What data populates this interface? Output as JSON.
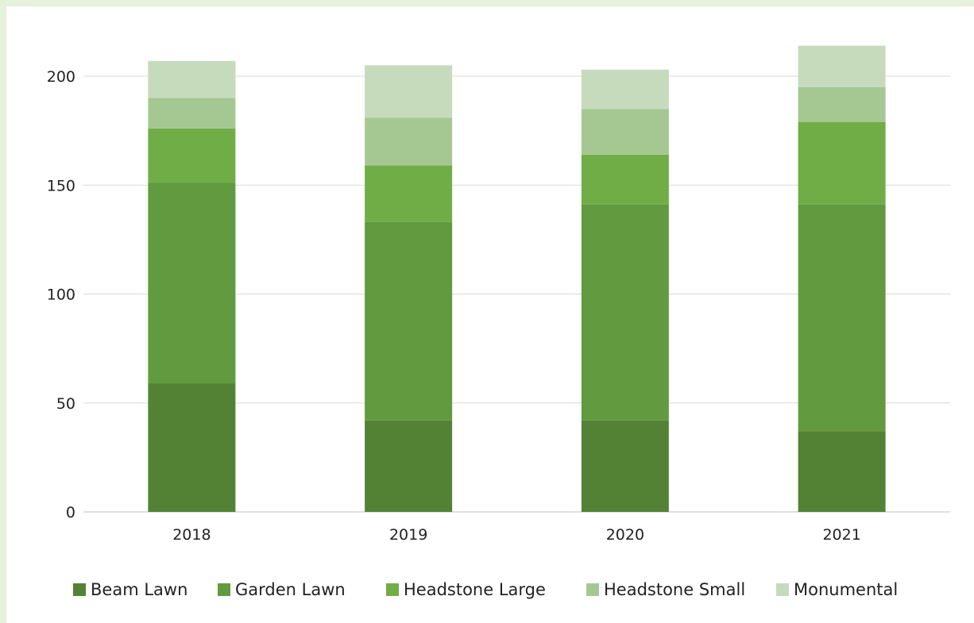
{
  "chart_data": {
    "type": "bar",
    "stacked": true,
    "categories": [
      "2018",
      "2019",
      "2020",
      "2021"
    ],
    "yticks": [
      "0",
      "50",
      "100",
      "150",
      "200"
    ],
    "ylim": [
      0,
      200
    ],
    "grid": true,
    "legend_position": "bottom",
    "series": [
      {
        "name": "Beam Lawn",
        "color": "#548235",
        "values": [
          59,
          42,
          42,
          37
        ]
      },
      {
        "name": "Garden Lawn",
        "color": "#629b3f",
        "values": [
          92,
          91,
          99,
          104
        ]
      },
      {
        "name": "Headstone Large",
        "color": "#70ad47",
        "values": [
          25,
          26,
          23,
          38
        ]
      },
      {
        "name": "Headstone Small",
        "color": "#a5c893",
        "values": [
          14,
          22,
          21,
          16
        ]
      },
      {
        "name": "Monumental",
        "color": "#c5dbbc",
        "values": [
          17,
          24,
          18,
          19
        ]
      }
    ]
  }
}
